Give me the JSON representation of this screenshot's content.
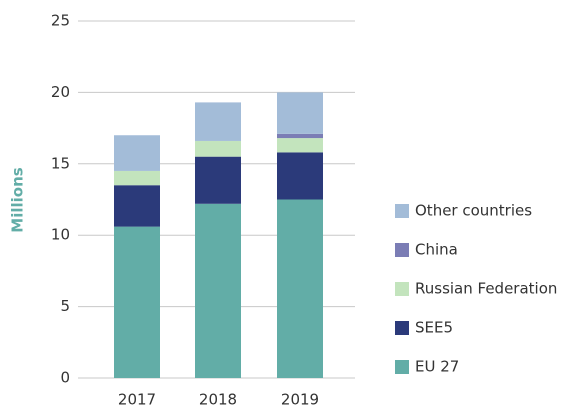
{
  "chart_data": {
    "type": "stacked_bar",
    "y_label": "Millions",
    "categories": [
      "2017",
      "2018",
      "2019"
    ],
    "series": [
      {
        "name": "EU 27",
        "color": "#62ada7",
        "values": [
          10.6,
          12.2,
          12.5
        ]
      },
      {
        "name": "SEE5",
        "color": "#2b3a7a",
        "values": [
          2.9,
          3.3,
          3.3
        ]
      },
      {
        "name": "Russian Federation",
        "color": "#c3e4bd",
        "values": [
          1.0,
          1.1,
          1.0
        ]
      },
      {
        "name": "China",
        "color": "#7b7db5",
        "values": [
          0,
          0,
          0.3
        ]
      },
      {
        "name": "Other countries",
        "color": "#a3bcd8",
        "values": [
          2.5,
          2.7,
          2.9
        ]
      }
    ],
    "ylim": [
      0,
      25
    ],
    "yticks": [
      0,
      5,
      10,
      15,
      20,
      25
    ],
    "grid": true,
    "legend": "right"
  }
}
